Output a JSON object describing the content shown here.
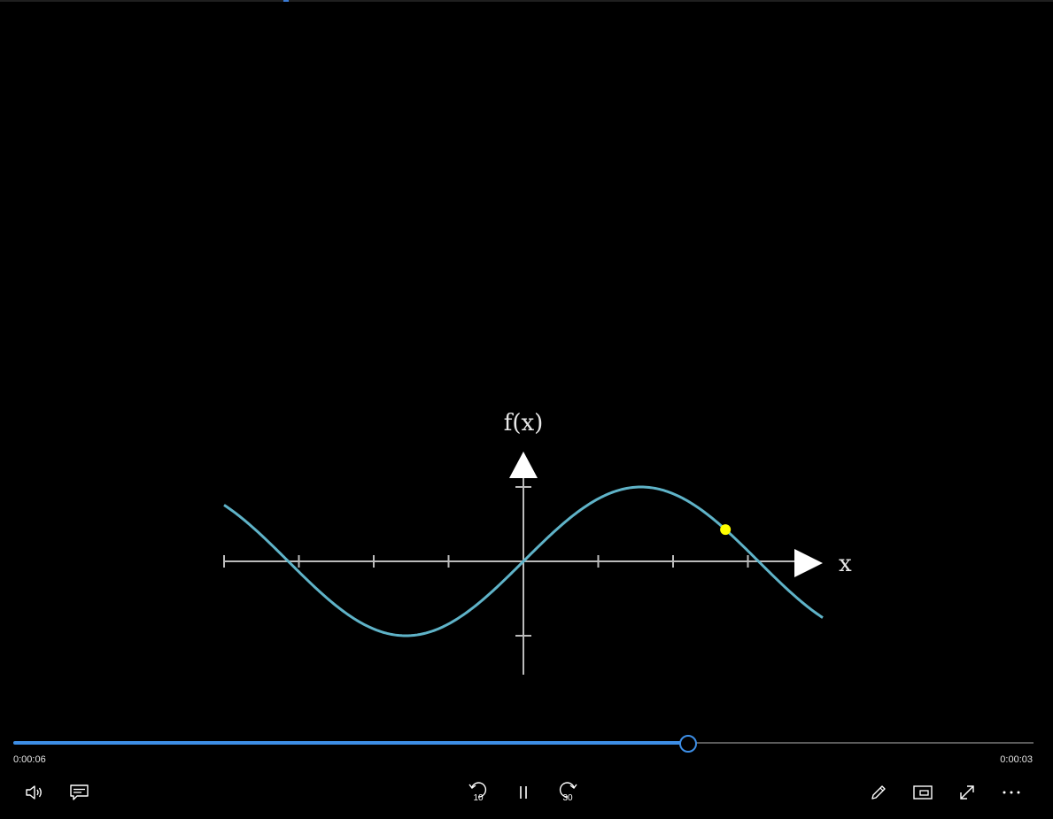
{
  "player": {
    "elapsed": "0:00:06",
    "remaining": "0:00:03",
    "progress": 0.661
  },
  "controls": {
    "left": [
      {
        "name": "volume-icon"
      },
      {
        "name": "captions-icon"
      }
    ],
    "center": {
      "skip_back_seconds": "10",
      "play_state": "pause-icon",
      "skip_forward_seconds": "30"
    },
    "right": [
      {
        "name": "pen-icon"
      },
      {
        "name": "mini-view-icon"
      },
      {
        "name": "fullscreen-icon"
      },
      {
        "name": "more-options-icon"
      }
    ]
  },
  "video_frame": {
    "y_axis_label": "f(x)",
    "x_axis_label": "x",
    "curve_color": "#5fb3c8",
    "axis_color": "#bbbbbb",
    "marker_color": "#ffff00"
  },
  "chart_data": {
    "type": "line",
    "function": "sin(x)",
    "xlabel": "x",
    "ylabel": "f(x)",
    "x_ticks": [
      -4,
      -3,
      -2,
      -1,
      0,
      1,
      2,
      3
    ],
    "y_ticks": [
      -1,
      1
    ],
    "xlim": [
      -4,
      4
    ],
    "ylim": [
      -1.2,
      1.2
    ],
    "series": [
      {
        "x": [
          -4,
          -3.5,
          -3,
          -2.5,
          -2,
          -1.571,
          -1,
          -0.5,
          0,
          0.5,
          1,
          1.571,
          2,
          2.5,
          3,
          3.5,
          4
        ],
        "values": [
          0.757,
          0.351,
          -0.141,
          -0.598,
          -0.909,
          -1,
          -0.841,
          -0.479,
          0,
          0.479,
          0.841,
          1,
          0.909,
          0.598,
          0.141,
          -0.351,
          -0.757
        ]
      }
    ],
    "marker": {
      "x": 2.7,
      "y": 0.427
    }
  }
}
